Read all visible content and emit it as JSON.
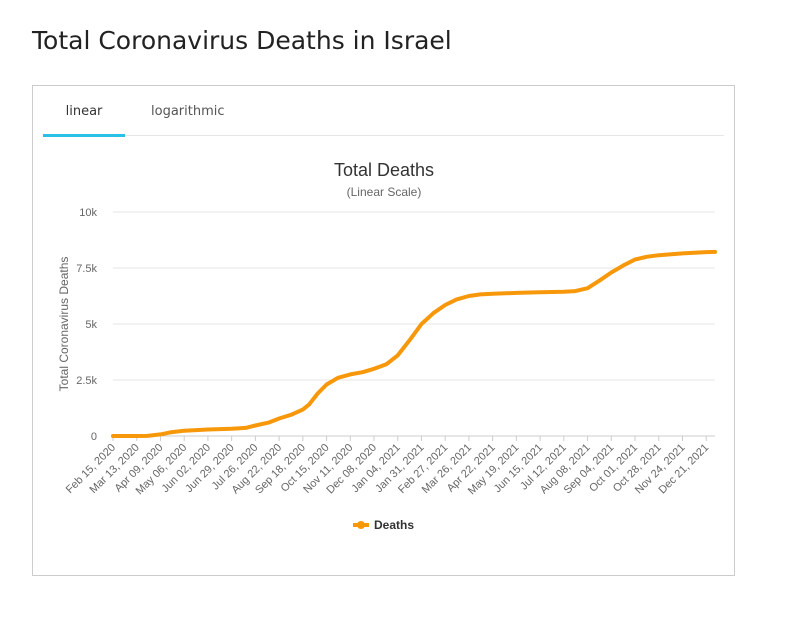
{
  "page": {
    "title": "Total Coronavirus Deaths in Israel"
  },
  "tabs": [
    {
      "label": "linear",
      "active": true
    },
    {
      "label": "logarithmic",
      "active": false
    }
  ],
  "colors": {
    "accent": "#2bc1e6",
    "series": "#f7970a"
  },
  "chart_data": {
    "type": "line",
    "title": "Total Deaths",
    "subtitle": "(Linear Scale)",
    "ylabel": "Total Coronavirus Deaths",
    "xlabel": "",
    "ylim": [
      0,
      10000
    ],
    "y_ticks": [
      0,
      2500,
      5000,
      7500,
      10000
    ],
    "y_tick_labels": [
      "0",
      "2.5k",
      "5k",
      "7.5k",
      "10k"
    ],
    "x_ticks": [
      "2020-02-15",
      "2020-03-13",
      "2020-04-09",
      "2020-05-06",
      "2020-06-02",
      "2020-06-29",
      "2020-07-26",
      "2020-08-22",
      "2020-09-18",
      "2020-10-15",
      "2020-11-11",
      "2020-12-08",
      "2021-01-04",
      "2021-01-31",
      "2021-02-27",
      "2021-03-26",
      "2021-04-22",
      "2021-05-19",
      "2021-06-15",
      "2021-07-12",
      "2021-08-08",
      "2021-09-04",
      "2021-10-01",
      "2021-10-28",
      "2021-11-24",
      "2021-12-21"
    ],
    "x_tick_labels": [
      "Feb 15, 2020",
      "Mar 13, 2020",
      "Apr 09, 2020",
      "May 06, 2020",
      "Jun 02, 2020",
      "Jun 29, 2020",
      "Jul 26, 2020",
      "Aug 22, 2020",
      "Sep 18, 2020",
      "Oct 15, 2020",
      "Nov 11, 2020",
      "Dec 08, 2020",
      "Jan 04, 2021",
      "Jan 31, 2021",
      "Feb 27, 2021",
      "Mar 26, 2021",
      "Apr 22, 2021",
      "May 19, 2021",
      "Jun 15, 2021",
      "Jul 12, 2021",
      "Aug 08, 2021",
      "Sep 04, 2021",
      "Oct 01, 2021",
      "Oct 28, 2021",
      "Nov 24, 2021",
      "Dec 21, 2021"
    ],
    "grid": true,
    "legend": "bottom-center",
    "series": [
      {
        "name": "Deaths",
        "color": "#f7970a",
        "points": [
          [
            "2020-02-15",
            0
          ],
          [
            "2020-03-13",
            0
          ],
          [
            "2020-03-25",
            5
          ],
          [
            "2020-04-09",
            70
          ],
          [
            "2020-04-20",
            160
          ],
          [
            "2020-05-06",
            235
          ],
          [
            "2020-06-02",
            290
          ],
          [
            "2020-06-29",
            320
          ],
          [
            "2020-07-15",
            360
          ],
          [
            "2020-07-26",
            470
          ],
          [
            "2020-08-10",
            600
          ],
          [
            "2020-08-22",
            780
          ],
          [
            "2020-09-05",
            950
          ],
          [
            "2020-09-18",
            1180
          ],
          [
            "2020-09-25",
            1400
          ],
          [
            "2020-10-05",
            1900
          ],
          [
            "2020-10-15",
            2300
          ],
          [
            "2020-10-28",
            2600
          ],
          [
            "2020-11-11",
            2750
          ],
          [
            "2020-11-25",
            2850
          ],
          [
            "2020-12-08",
            3000
          ],
          [
            "2020-12-22",
            3200
          ],
          [
            "2021-01-04",
            3600
          ],
          [
            "2021-01-18",
            4300
          ],
          [
            "2021-01-31",
            5000
          ],
          [
            "2021-02-14",
            5500
          ],
          [
            "2021-02-27",
            5850
          ],
          [
            "2021-03-12",
            6100
          ],
          [
            "2021-03-26",
            6250
          ],
          [
            "2021-04-08",
            6320
          ],
          [
            "2021-04-22",
            6350
          ],
          [
            "2021-05-19",
            6390
          ],
          [
            "2021-06-15",
            6420
          ],
          [
            "2021-07-12",
            6440
          ],
          [
            "2021-07-25",
            6470
          ],
          [
            "2021-08-08",
            6600
          ],
          [
            "2021-08-22",
            6950
          ],
          [
            "2021-09-04",
            7300
          ],
          [
            "2021-09-18",
            7620
          ],
          [
            "2021-10-01",
            7880
          ],
          [
            "2021-10-14",
            8000
          ],
          [
            "2021-10-28",
            8070
          ],
          [
            "2021-11-24",
            8150
          ],
          [
            "2021-12-21",
            8210
          ],
          [
            "2021-12-31",
            8220
          ]
        ]
      }
    ]
  }
}
